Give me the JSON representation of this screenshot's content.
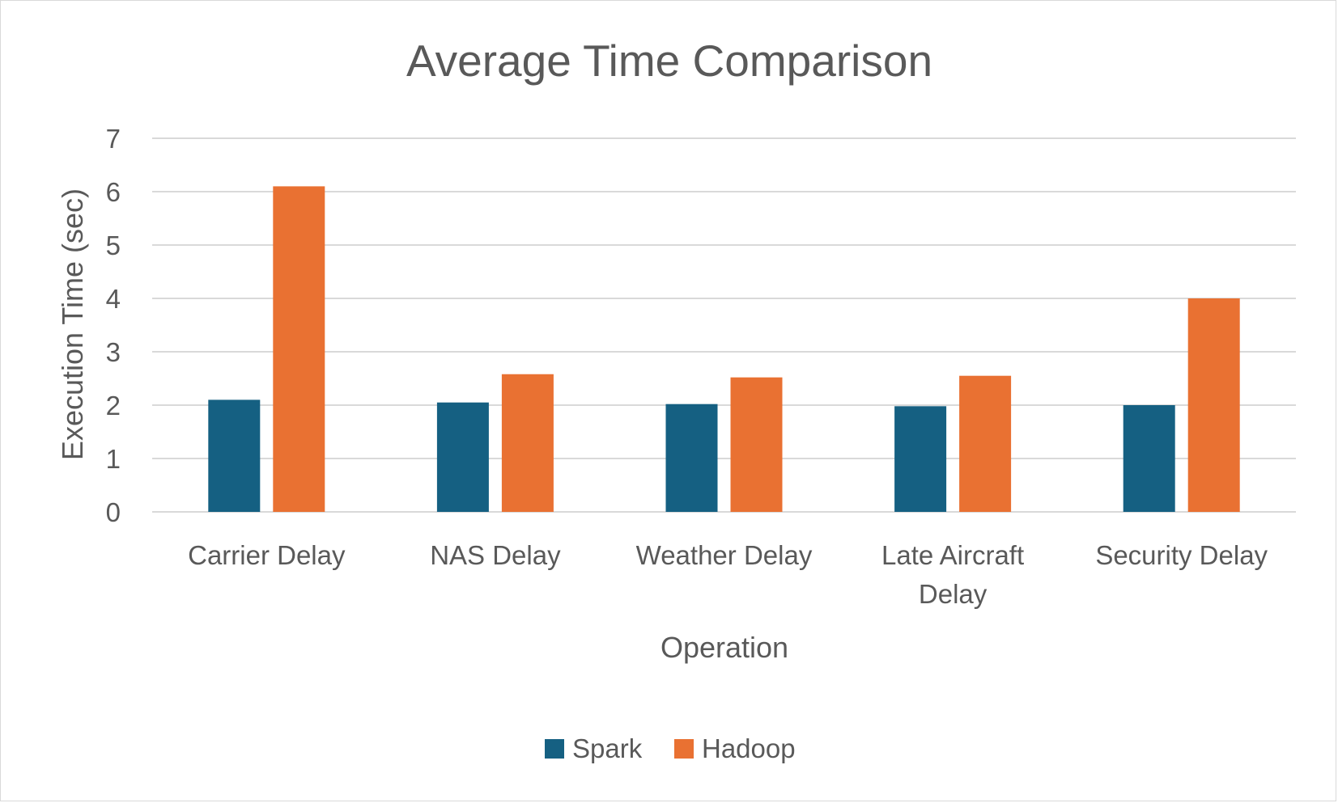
{
  "chart_data": {
    "type": "bar",
    "title": "Average Time Comparison",
    "xlabel": "Operation",
    "ylabel": "Execution Time (sec)",
    "categories": [
      "Carrier Delay",
      "NAS Delay",
      "Weather Delay",
      "Late Aircraft Delay",
      "Security Delay"
    ],
    "category_label_lines": [
      [
        "Carrier Delay"
      ],
      [
        "NAS Delay"
      ],
      [
        "Weather Delay"
      ],
      [
        "Late Aircraft",
        "Delay"
      ],
      [
        "Security Delay"
      ]
    ],
    "series": [
      {
        "name": "Spark",
        "color": "#156082",
        "values": [
          2.1,
          2.05,
          2.02,
          1.98,
          2.0
        ]
      },
      {
        "name": "Hadoop",
        "color": "#E97132",
        "values": [
          6.1,
          2.58,
          2.52,
          2.55,
          4.0
        ]
      }
    ],
    "ylim": [
      0,
      7
    ],
    "yticks": [
      0,
      1,
      2,
      3,
      4,
      5,
      6,
      7
    ],
    "grid": true,
    "legend_position": "bottom"
  }
}
